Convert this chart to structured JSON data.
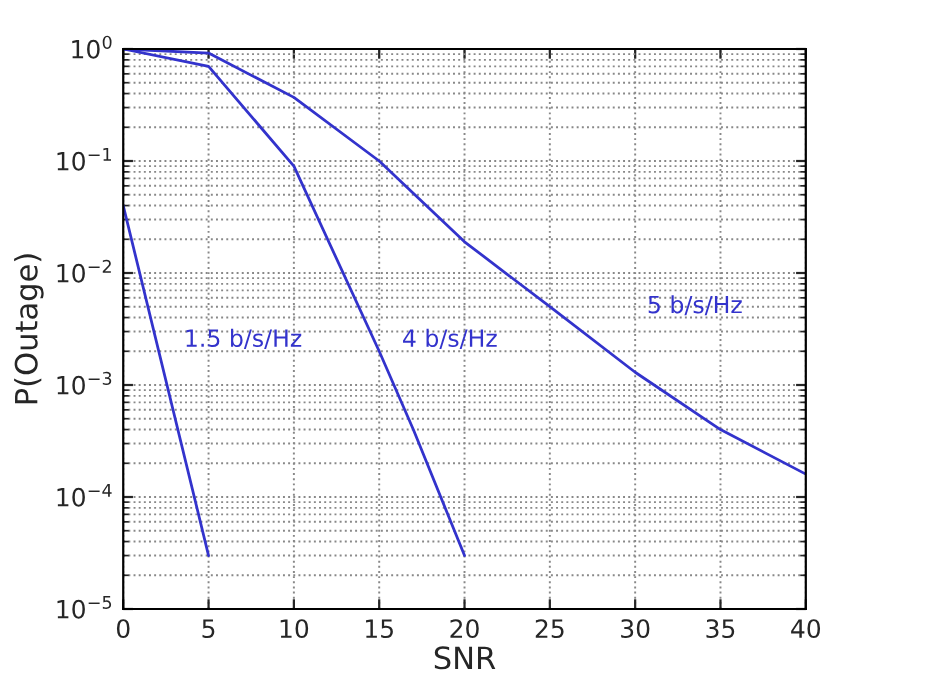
{
  "chart_data": {
    "type": "line",
    "xlabel": "SNR",
    "ylabel": "P(Outage)",
    "log": "y",
    "grid": true,
    "xlim": [
      0,
      40
    ],
    "xticks": [
      0,
      5,
      10,
      15,
      20,
      25,
      30,
      35,
      40
    ],
    "ylim": [
      1e-05,
      1
    ],
    "yticks": [
      {
        "value": 1e-05,
        "label": "10$^{−5}$"
      },
      {
        "value": 0.0001,
        "label": "10$^{−4}$"
      },
      {
        "value": 0.001,
        "label": "10$^{−3}$"
      },
      {
        "value": 0.01,
        "label": "10$^{−2}$"
      },
      {
        "value": 0.1,
        "label": "10$^{−1}$"
      },
      {
        "value": 1,
        "label": "10$^{0}$"
      }
    ],
    "series": [
      {
        "name": "1.5 b/s/Hz",
        "color": "#3333cc",
        "x": [
          0,
          5
        ],
        "values": [
          0.04,
          3e-05
        ]
      },
      {
        "name": "4 b/s/Hz",
        "color": "#3333cc",
        "x": [
          0,
          5,
          10,
          15,
          17,
          20
        ],
        "values": [
          1,
          0.7,
          0.09,
          0.002,
          0.0004,
          3e-05
        ]
      },
      {
        "name": "5 b/s/Hz",
        "color": "#3333cc",
        "x": [
          0,
          5,
          10,
          15,
          20,
          25,
          30,
          35,
          40
        ],
        "values": [
          1,
          0.92,
          0.37,
          0.1,
          0.019,
          0.005,
          0.0013,
          0.0004,
          0.00016
        ]
      }
    ]
  }
}
